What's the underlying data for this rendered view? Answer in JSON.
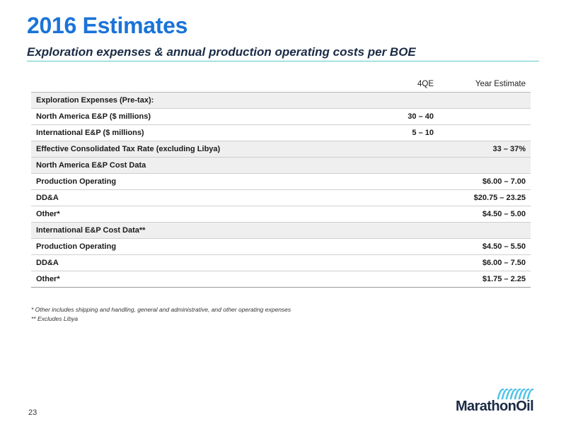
{
  "header": {
    "title": "2016 Estimates",
    "subtitle": "Exploration expenses & annual production operating costs per BOE"
  },
  "table": {
    "columns": [
      "",
      "4QE",
      "Year Estimate"
    ],
    "rows": [
      {
        "label": "Exploration Expenses (Pre-tax):",
        "q4": "",
        "year": ""
      },
      {
        "label": "North America E&P ($ millions)",
        "q4": "30 – 40",
        "year": ""
      },
      {
        "label": "International E&P ($ millions)",
        "q4": "5 – 10",
        "year": ""
      },
      {
        "label": "Effective Consolidated Tax Rate (excluding Libya)",
        "q4": "",
        "year": "33 – 37%"
      },
      {
        "label": "North America E&P Cost Data",
        "q4": "",
        "year": ""
      },
      {
        "label": "Production Operating",
        "q4": "",
        "year": "$6.00 – 7.00"
      },
      {
        "label": "DD&A",
        "q4": "",
        "year": "$20.75 – 23.25"
      },
      {
        "label": "Other*",
        "q4": "",
        "year": "$4.50 – 5.00"
      },
      {
        "label": "International E&P Cost Data**",
        "q4": "",
        "year": ""
      },
      {
        "label": "Production Operating",
        "q4": "",
        "year": "$4.50 – 5.50"
      },
      {
        "label": "DD&A",
        "q4": "",
        "year": "$6.00 – 7.50"
      },
      {
        "label": "Other*",
        "q4": "",
        "year": "$1.75 – 2.25"
      }
    ]
  },
  "footnotes": [
    "* Other includes shipping and handling, general and administrative, and other operating expenses",
    "** Excludes Libya"
  ],
  "footer": {
    "page_number": "23",
    "logo_text": "MarathonOil",
    "logo_icon": "wave-icon"
  },
  "colors": {
    "title": "#1a73d9",
    "rule": "#5ec8c0",
    "logo_mark": "#4fc3e8",
    "shade": "#efefef"
  }
}
